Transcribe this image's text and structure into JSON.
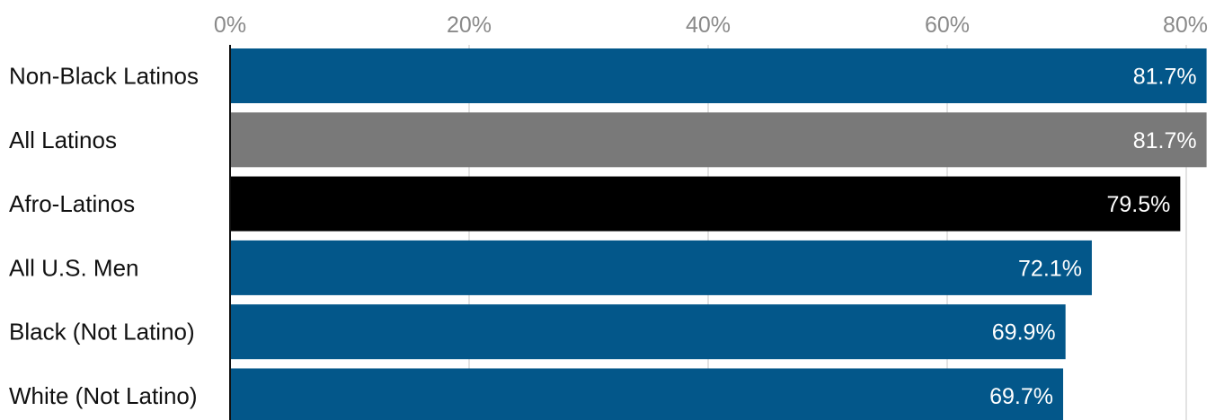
{
  "chart_data": {
    "type": "bar",
    "orientation": "horizontal",
    "categories": [
      "Non-Black Latinos",
      "All Latinos",
      "Afro-Latinos",
      "All U.S. Men",
      "Black (Not Latino)",
      "White (Not Latino)"
    ],
    "values": [
      81.7,
      81.7,
      79.5,
      72.1,
      69.9,
      69.7
    ],
    "value_labels": [
      "81.7%",
      "81.7%",
      "79.5%",
      "72.1%",
      "69.9%",
      "69.7%"
    ],
    "bar_colors": [
      "#03578a",
      "#797979",
      "#000000",
      "#03578a",
      "#03578a",
      "#03578a"
    ],
    "x_ticks": [
      0,
      20,
      40,
      60,
      80
    ],
    "x_tick_labels": [
      "0%",
      "20%",
      "40%",
      "60%",
      "80%"
    ],
    "xlim": [
      0,
      82
    ],
    "x_axis_position": "top",
    "grid": true,
    "title": "",
    "xlabel": "",
    "ylabel": ""
  }
}
